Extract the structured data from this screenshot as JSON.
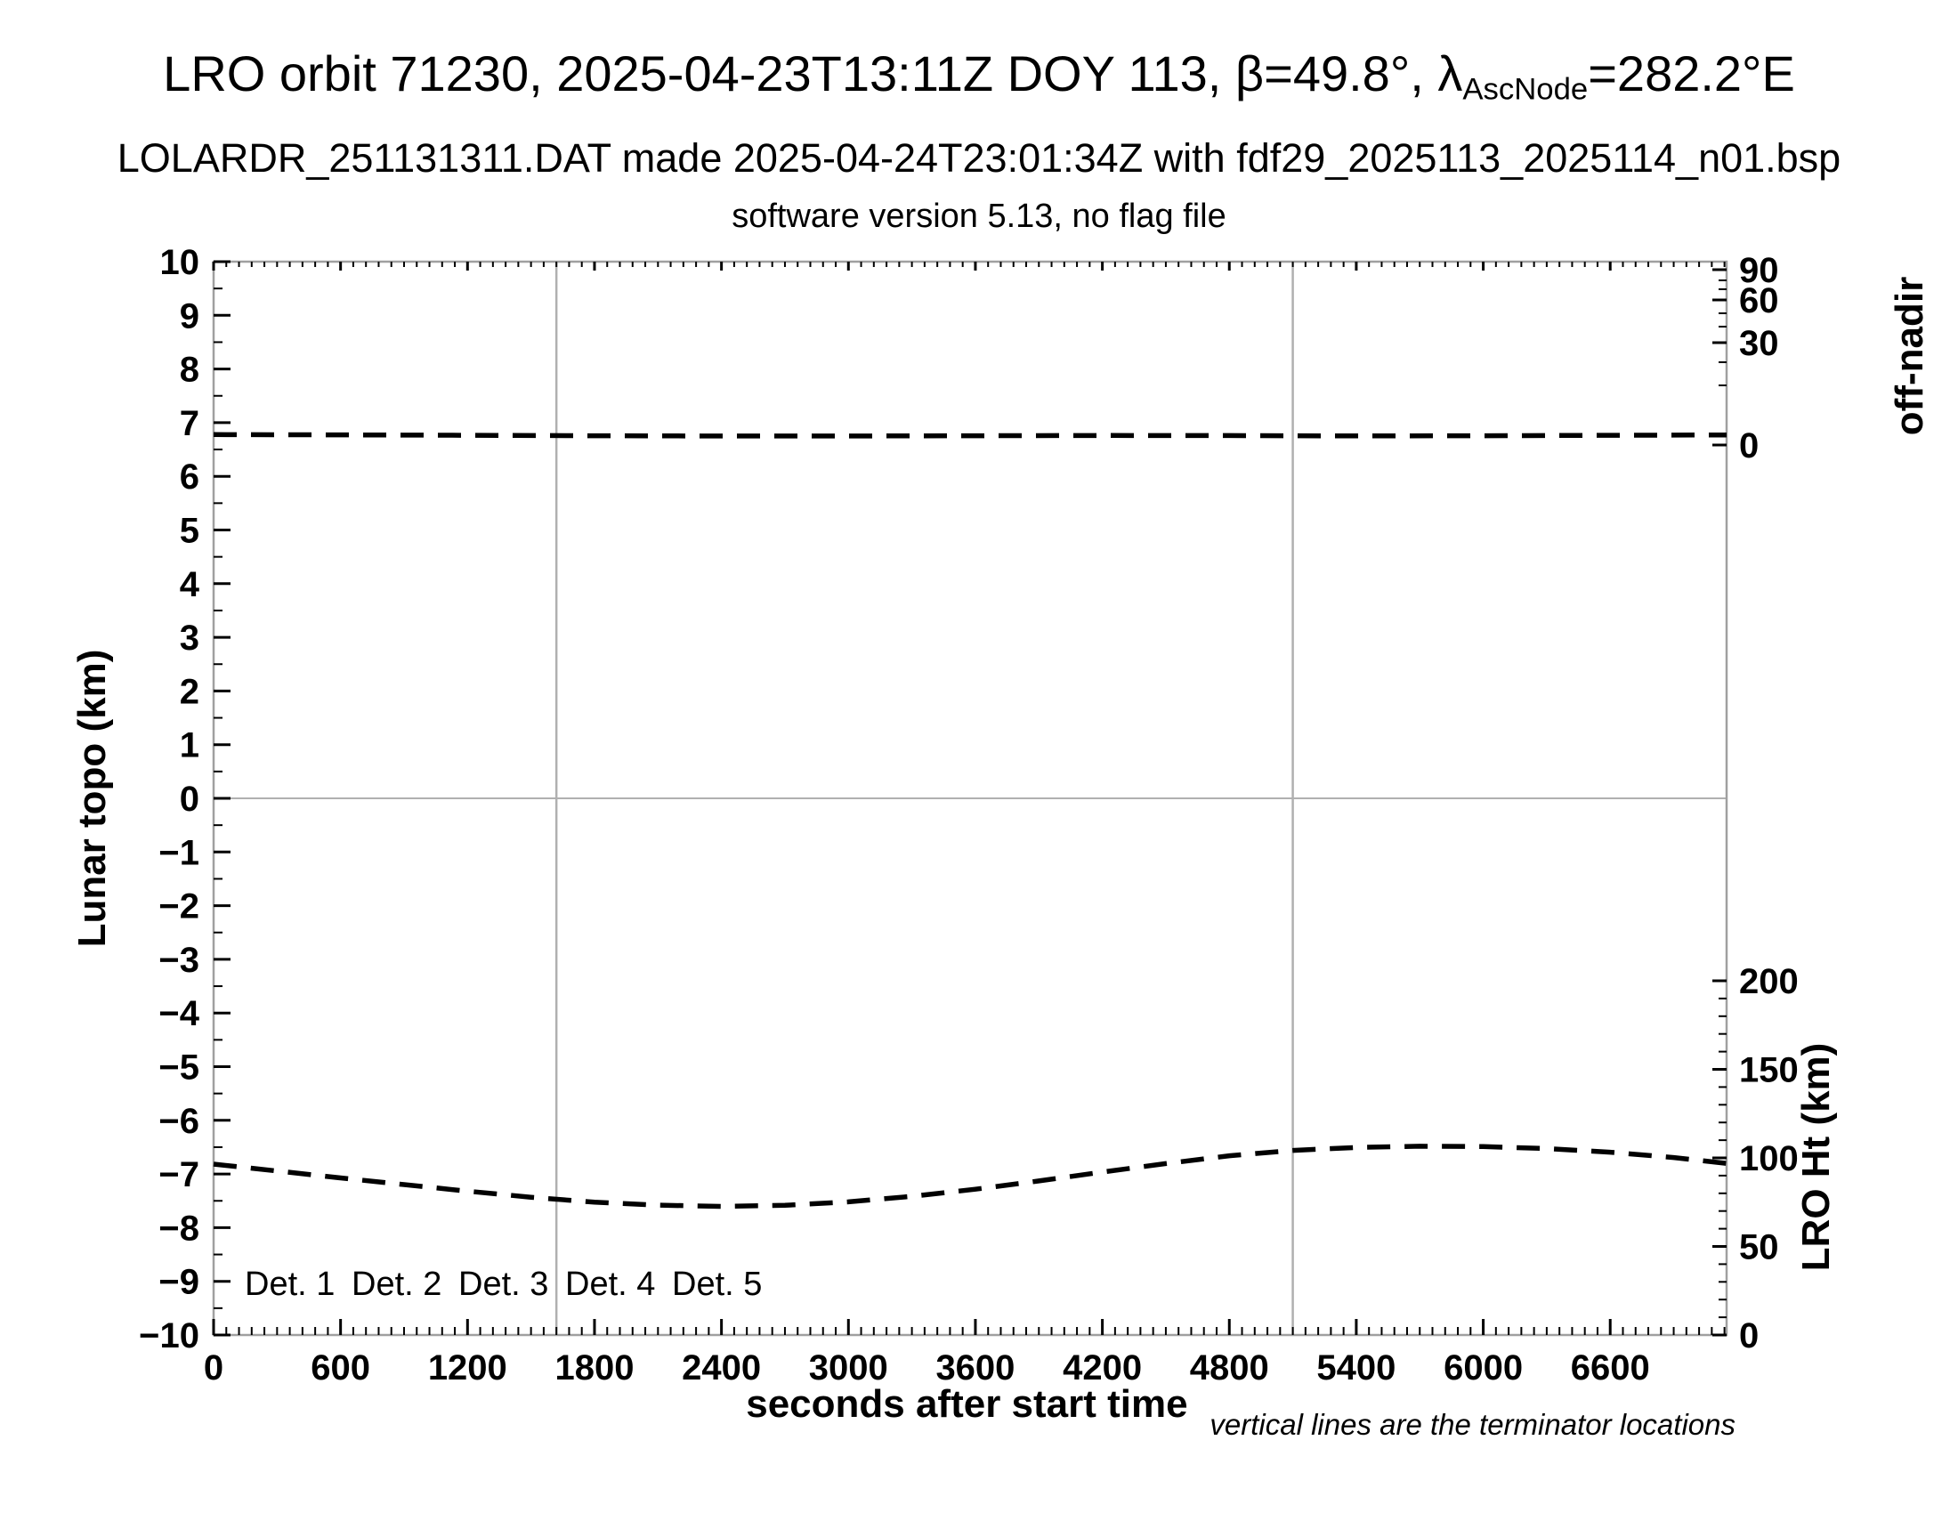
{
  "title": {
    "part1": "LRO orbit 71230, 2025-04-23T13:11Z DOY 113, β=49.8°, λ",
    "subscript": "AscNode",
    "part2": "=282.2°E"
  },
  "subtitle": "LOLARDR_251131311.DAT made 2025-04-24T23:01:34Z with fdf29_2025113_2025114_n01.bsp",
  "software_line": "software version 5.13, no flag file",
  "chart_data": {
    "type": "line",
    "title": "LRO orbit 71230, 2025-04-23T13:11Z DOY 113, β=49.8°, λAscNode=282.2°E",
    "axes": {
      "x": {
        "label": "seconds after start time",
        "range": [
          0,
          7150
        ],
        "major_tick_step": 600,
        "minor_tick_step": 60,
        "major_tick_labels": [
          "0",
          "600",
          "1200",
          "1800",
          "2400",
          "3000",
          "3600",
          "4200",
          "4800",
          "5400",
          "6000",
          "6600"
        ]
      },
      "y_left": {
        "label": "Lunar topo (km)",
        "range": [
          -10,
          10
        ],
        "major_tick_step": 1,
        "minor_tick_step": 0.5,
        "gridline_at": 0
      },
      "y_right_top": {
        "label": "off-nadir",
        "unit": "degrees",
        "major_ticks": [
          90,
          60,
          30,
          0
        ],
        "minor_ticks": [
          80,
          70,
          50,
          40,
          20,
          10
        ],
        "scale": "nonlinear"
      },
      "y_right_bottom": {
        "label": "LRO Ht (km)",
        "range": [
          0,
          200
        ],
        "major_ticks": [
          200,
          150,
          100,
          50,
          0
        ],
        "minor_tick_step": 10
      }
    },
    "series": [
      {
        "name": "off-nadir angle",
        "axis": "y_right_top",
        "style": "dashed",
        "color": "#000000",
        "points": [
          [
            0,
            1.75
          ],
          [
            600,
            1.7
          ],
          [
            1200,
            1.62
          ],
          [
            1800,
            1.55
          ],
          [
            2400,
            1.5
          ],
          [
            3000,
            1.5
          ],
          [
            3600,
            1.55
          ],
          [
            4200,
            1.6
          ],
          [
            4800,
            1.58
          ],
          [
            5400,
            1.52
          ],
          [
            6000,
            1.55
          ],
          [
            6600,
            1.62
          ],
          [
            7150,
            1.68
          ]
        ]
      },
      {
        "name": "LRO height",
        "axis": "y_right_bottom",
        "style": "dashed",
        "color": "#000000",
        "points": [
          [
            0,
            96.5
          ],
          [
            300,
            92.6
          ],
          [
            600,
            88.7
          ],
          [
            900,
            84.9
          ],
          [
            1200,
            81.2
          ],
          [
            1500,
            77.8
          ],
          [
            1800,
            75.0
          ],
          [
            2100,
            73.3
          ],
          [
            2400,
            72.6
          ],
          [
            2700,
            73.2
          ],
          [
            3000,
            75.2
          ],
          [
            3300,
            78.3
          ],
          [
            3600,
            82.3
          ],
          [
            3900,
            87.0
          ],
          [
            4200,
            92.0
          ],
          [
            4500,
            96.8
          ],
          [
            4800,
            101.2
          ],
          [
            5100,
            104.2
          ],
          [
            5400,
            105.9
          ],
          [
            5700,
            106.6
          ],
          [
            6000,
            106.4
          ],
          [
            6300,
            105.3
          ],
          [
            6600,
            103.2
          ],
          [
            6900,
            100.2
          ],
          [
            7150,
            96.9
          ]
        ]
      }
    ],
    "terminator_lines_seconds": [
      1620,
      5100
    ],
    "legend": [
      {
        "label": "Det. 1",
        "color": "#000000"
      },
      {
        "label": "Det. 2",
        "color": "#0000ff"
      },
      {
        "label": "Det. 3",
        "color": "#00dd00"
      },
      {
        "label": "Det. 4",
        "color": "#ffa500"
      },
      {
        "label": "Det. 5",
        "color": "#ff0000"
      }
    ],
    "footnote": "vertical lines are the terminator locations",
    "grid": "y-zero line and terminator vertical lines only",
    "legend_position": "inside bottom-left"
  }
}
